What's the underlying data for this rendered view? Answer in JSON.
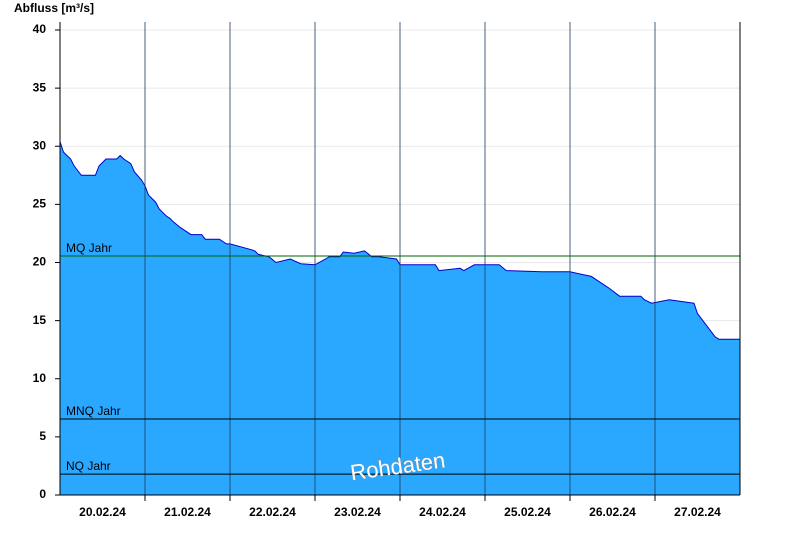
{
  "chart_data": {
    "type": "area",
    "y_label": "Abfluss [m³/s]",
    "watermark": "Rohdaten",
    "x": [
      0,
      1,
      3,
      4,
      6,
      10,
      11,
      13,
      16,
      17,
      18,
      20,
      21,
      23,
      24,
      25,
      27,
      28,
      30,
      31,
      32,
      34,
      35,
      37,
      40,
      41,
      45,
      47,
      48,
      54,
      55,
      56,
      59,
      61,
      65,
      68,
      72,
      75,
      76,
      79,
      80,
      83,
      86,
      88,
      90,
      95,
      96,
      106,
      107,
      113,
      114,
      117,
      119,
      124,
      126,
      136,
      144,
      147,
      150,
      152,
      155,
      158,
      164,
      165,
      167,
      172,
      179,
      180,
      182,
      184,
      185,
      186,
      192
    ],
    "series": [
      {
        "color": "#2aa8ff",
        "line_color": "#0000cc",
        "values": [
          30.4,
          29.5,
          28.9,
          28.3,
          27.5,
          27.5,
          28.3,
          28.9,
          28.9,
          29.2,
          28.9,
          28.5,
          27.8,
          27.1,
          26.6,
          25.8,
          25.2,
          24.6,
          24.0,
          23.8,
          23.5,
          23.0,
          22.8,
          22.4,
          22.4,
          22.0,
          22.0,
          21.6,
          21.6,
          21.1,
          21.0,
          20.7,
          20.5,
          20.0,
          20.3,
          19.9,
          19.8,
          20.3,
          20.5,
          20.5,
          20.9,
          20.8,
          21.0,
          20.5,
          20.5,
          20.3,
          19.8,
          19.8,
          19.3,
          19.5,
          19.3,
          19.8,
          19.8,
          19.8,
          19.3,
          19.2,
          19.2,
          19.0,
          18.8,
          18.4,
          17.8,
          17.1,
          17.1,
          16.8,
          16.5,
          16.8,
          16.5,
          15.6,
          14.8,
          14.0,
          13.6,
          13.4,
          13.4
        ]
      }
    ],
    "xlim": [
      0,
      192
    ],
    "xticks": [
      {
        "value": 12,
        "label": "20.02.24"
      },
      {
        "value": 36,
        "label": "21.02.24"
      },
      {
        "value": 60,
        "label": "22.02.24"
      },
      {
        "value": 84,
        "label": "23.02.24"
      },
      {
        "value": 108,
        "label": "24.02.24"
      },
      {
        "value": 132,
        "label": "25.02.24"
      },
      {
        "value": 156,
        "label": "26.02.24"
      },
      {
        "value": 180,
        "label": "27.02.24"
      }
    ],
    "xgrid": [
      24,
      48,
      72,
      96,
      120,
      144,
      168
    ],
    "ylim": [
      0,
      40
    ],
    "yticks": [
      0,
      5,
      10,
      15,
      20,
      25,
      30,
      35,
      40
    ],
    "grid": true,
    "reference_lines": [
      {
        "label": "MQ Jahr",
        "value": 20.56,
        "color": "#006400"
      },
      {
        "label": "MNQ Jahr",
        "value": 6.54,
        "color": "#000000"
      },
      {
        "label": "NQ Jahr",
        "value": 1.8,
        "color": "#000000"
      }
    ]
  }
}
